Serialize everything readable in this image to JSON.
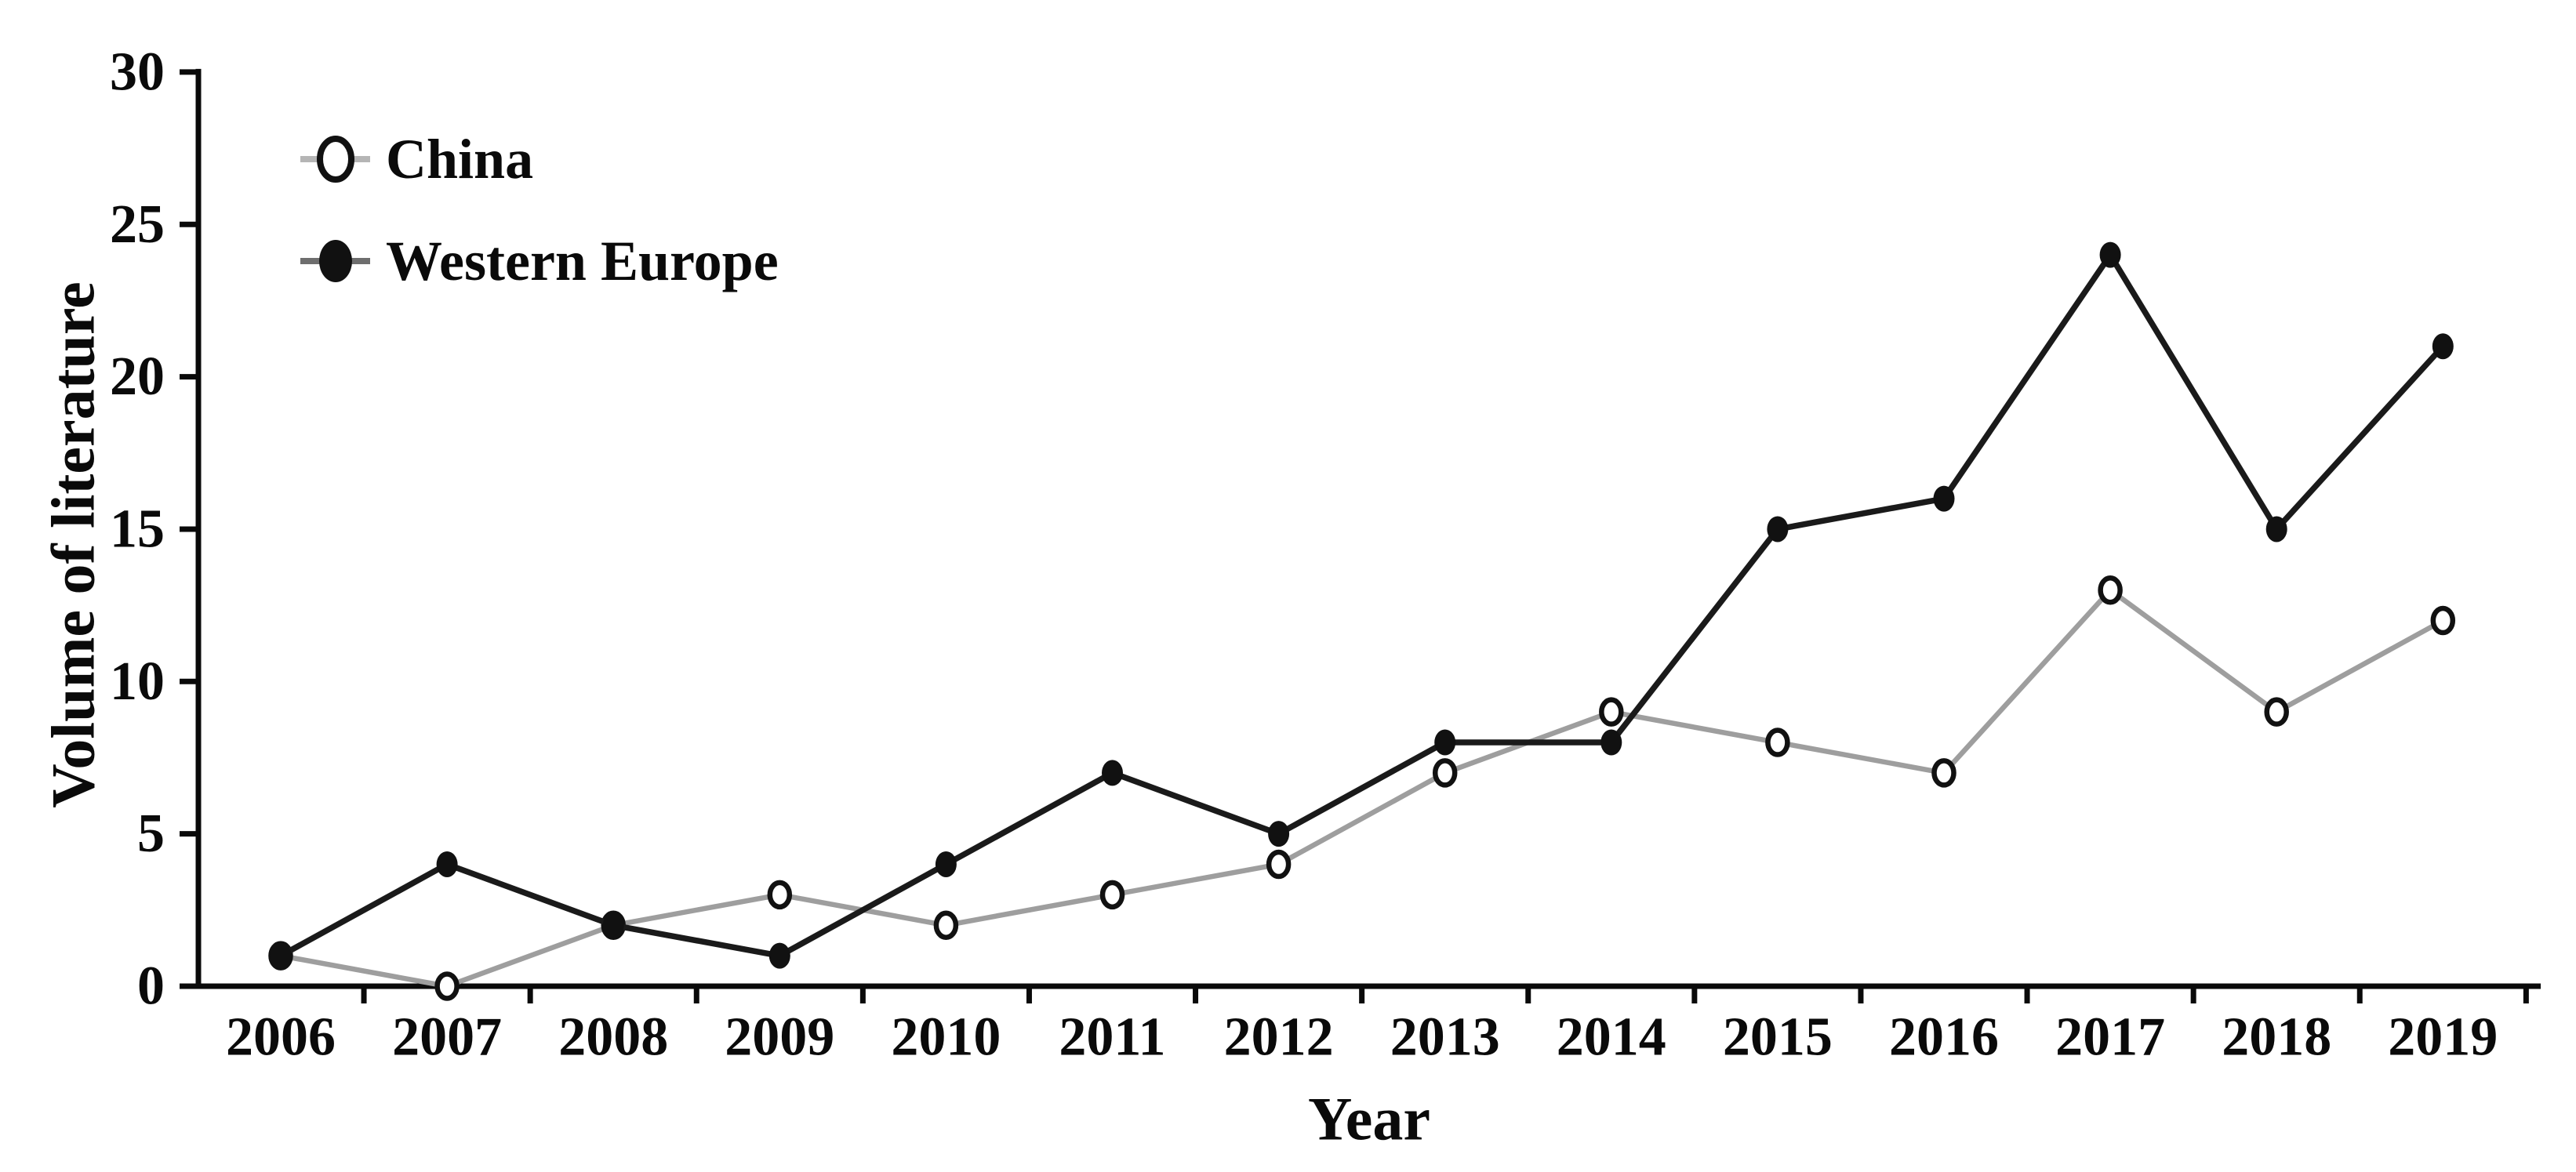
{
  "figure": {
    "kind": "statistical line chart",
    "background_color": "#ffffff"
  },
  "chart_data": {
    "type": "line",
    "title": "",
    "xlabel": "Year",
    "ylabel": "Volume of literature",
    "x": [
      "2006",
      "2007",
      "2008",
      "2009",
      "2010",
      "2011",
      "2012",
      "2013",
      "2014",
      "2015",
      "2016",
      "2017",
      "2018",
      "2019"
    ],
    "ylim": [
      0,
      30
    ],
    "yticks": [
      0,
      5,
      10,
      15,
      20,
      25,
      30
    ],
    "grid": false,
    "legend_position": "top-left",
    "axis_color": "#0a0a0a",
    "series": [
      {
        "name": "China",
        "marker": "open-circle",
        "line_color": "#9e9e9e",
        "legend_line_color": "#b5b5b5",
        "marker_stroke": "#111111",
        "marker_fill": "#ffffff",
        "values": [
          1,
          0,
          2,
          3,
          2,
          3,
          4,
          7,
          9,
          8,
          7,
          13,
          9,
          12
        ]
      },
      {
        "name": "Western Europe",
        "marker": "filled-circle",
        "line_color": "#1a1a1a",
        "legend_line_color": "#6e6e6e",
        "marker_stroke": "#111111",
        "marker_fill": "#111111",
        "values": [
          1,
          4,
          2,
          1,
          4,
          7,
          5,
          8,
          8,
          15,
          16,
          24,
          15,
          21
        ]
      }
    ]
  }
}
